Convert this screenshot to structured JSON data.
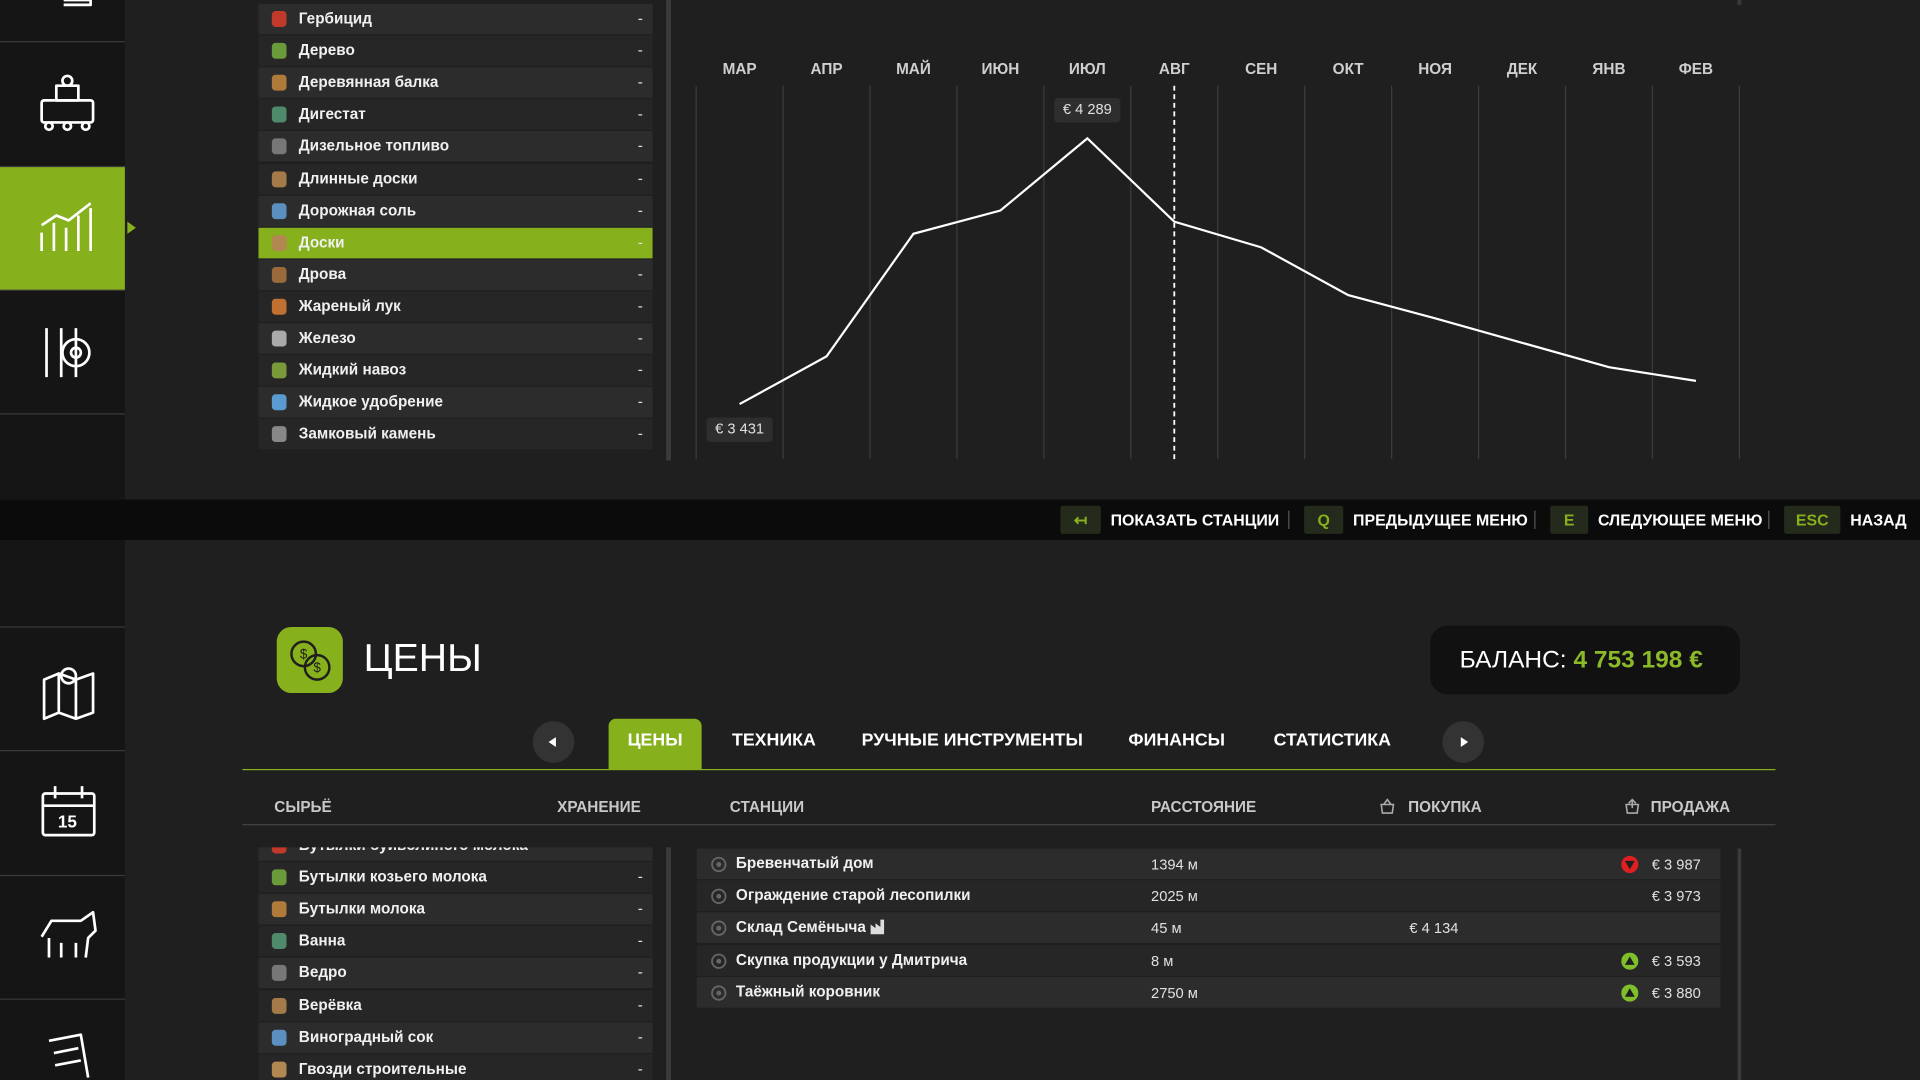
{
  "top_list": {
    "items": [
      {
        "name": "Гербицид",
        "storage": "-"
      },
      {
        "name": "Дерево",
        "storage": "-"
      },
      {
        "name": "Деревянная балка",
        "storage": "-"
      },
      {
        "name": "Дигестат",
        "storage": "-"
      },
      {
        "name": "Дизельное топливо",
        "storage": "-"
      },
      {
        "name": "Длинные доски",
        "storage": "-"
      },
      {
        "name": "Дорожная соль",
        "storage": "-"
      },
      {
        "name": "Доски",
        "storage": "-"
      },
      {
        "name": "Дрова",
        "storage": "-"
      },
      {
        "name": "Жареный лук",
        "storage": "-"
      },
      {
        "name": "Железо",
        "storage": "-"
      },
      {
        "name": "Жидкий навоз",
        "storage": "-"
      },
      {
        "name": "Жидкое удобрение",
        "storage": "-"
      },
      {
        "name": "Замковый камень",
        "storage": "-"
      }
    ]
  },
  "chart_data": {
    "type": "line",
    "categories": [
      "МАР",
      "АПР",
      "МАЙ",
      "ИЮН",
      "ИЮЛ",
      "АВГ",
      "СЕН",
      "ОКТ",
      "НОЯ",
      "ДЕК",
      "ЯНВ",
      "ФЕВ"
    ],
    "values": [
      3431,
      3585,
      3981,
      4056,
      4289,
      4020,
      3937,
      3783,
      3708,
      3629,
      3550,
      3506
    ],
    "value_labels": [
      "€ 3 431",
      null,
      null,
      null,
      "€ 4 289",
      null,
      null,
      null,
      null,
      null,
      null,
      null
    ],
    "color": "#ffffff"
  },
  "controls": [
    {
      "key": "↤",
      "label": "ПОКАЗАТЬ СТАНЦИИ"
    },
    {
      "key": "Q",
      "label": "ПРЕДЫДУЩЕЕ МЕНЮ"
    },
    {
      "key": "E",
      "label": "СЛЕДУЮЩЕЕ МЕНЮ"
    },
    {
      "key": "ESC",
      "label": "НАЗАД"
    }
  ],
  "header": {
    "title": "ЦЕНЫ",
    "balance_label": "БАЛАНС:",
    "balance_value": "4 753 198 €"
  },
  "tabs": [
    "ЦЕНЫ",
    "ТЕХНИКА",
    "РУЧНЫЕ ИНСТРУМЕНТЫ",
    "ФИНАНСЫ",
    "СТАТИСТИКА"
  ],
  "columns": {
    "goods": "СЫРЬЁ",
    "storage": "ХРАНЕНИЕ",
    "stations": "СТАНЦИИ",
    "distance": "РАССТОЯНИЕ",
    "buy": "ПОКУПКА",
    "sell": "ПРОДАЖА"
  },
  "bottom_list": {
    "items": [
      {
        "name": "Бутылки буйволиного молока",
        "storage": "-"
      },
      {
        "name": "Бутылки козьего молока",
        "storage": "-"
      },
      {
        "name": "Бутылки молока",
        "storage": "-"
      },
      {
        "name": "Ванна",
        "storage": "-"
      },
      {
        "name": "Ведро",
        "storage": "-"
      },
      {
        "name": "Верёвка",
        "storage": "-"
      },
      {
        "name": "Виноградный сок",
        "storage": "-"
      },
      {
        "name": "Гвозди строительные",
        "storage": "-"
      }
    ]
  },
  "stations": [
    {
      "name": "Бревенчатый дом",
      "distance": "1394 м",
      "sell": "€ 3 987"
    },
    {
      "name": "Ограждение старой лесопилки",
      "distance": "2025 м",
      "sell": "€ 3 973"
    },
    {
      "name": "Склад Семёныча",
      "distance": "45 м",
      "buy": "€ 4 134"
    },
    {
      "name": "Скупка продукции у Дмитрича",
      "distance": "8 м",
      "sell": "€ 3 593"
    },
    {
      "name": "Таёжный коровник",
      "distance": "2750 м",
      "sell": "€ 3 880"
    }
  ]
}
